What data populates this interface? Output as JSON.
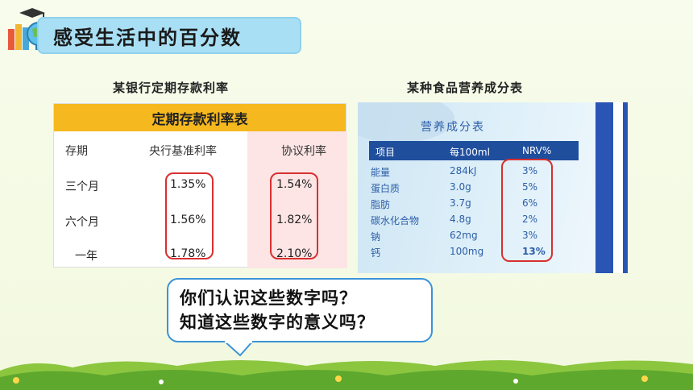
{
  "title": "感受生活中的百分数",
  "left_caption": "某银行定期存款利率",
  "right_caption": "某种食品营养成分表",
  "rate_table": {
    "heading": "定期存款利率表",
    "columns": [
      "存期",
      "央行基准利率",
      "协议利率"
    ],
    "rows": [
      {
        "term": "三个月",
        "base": "1.35%",
        "agreed": "1.54%"
      },
      {
        "term": "六个月",
        "base": "1.56%",
        "agreed": "1.82%"
      },
      {
        "term": "一年",
        "base": "1.78%",
        "agreed": "2.10%"
      }
    ]
  },
  "nutrition_table": {
    "heading": "营养成分表",
    "columns": [
      "项目",
      "每100ml",
      "NRV%"
    ],
    "rows": [
      {
        "item": "能量",
        "amount": "284kJ",
        "nrv": "3%"
      },
      {
        "item": "蛋白质",
        "amount": "3.0g",
        "nrv": "5%"
      },
      {
        "item": "脂肪",
        "amount": "3.7g",
        "nrv": "6%"
      },
      {
        "item": "碳水化合物",
        "amount": "4.8g",
        "nrv": "2%"
      },
      {
        "item": "钠",
        "amount": "62mg",
        "nrv": "3%"
      },
      {
        "item": "钙",
        "amount": "100mg",
        "nrv": "13%"
      }
    ]
  },
  "bubble": {
    "line1": "你们认识这些数字吗？",
    "line2": "知道这些数字的意义吗？"
  },
  "colors": {
    "banner": "#a8dff5",
    "table_header": "#f5b81e",
    "highlight": "#d83030",
    "bubble_border": "#3a93d8"
  }
}
